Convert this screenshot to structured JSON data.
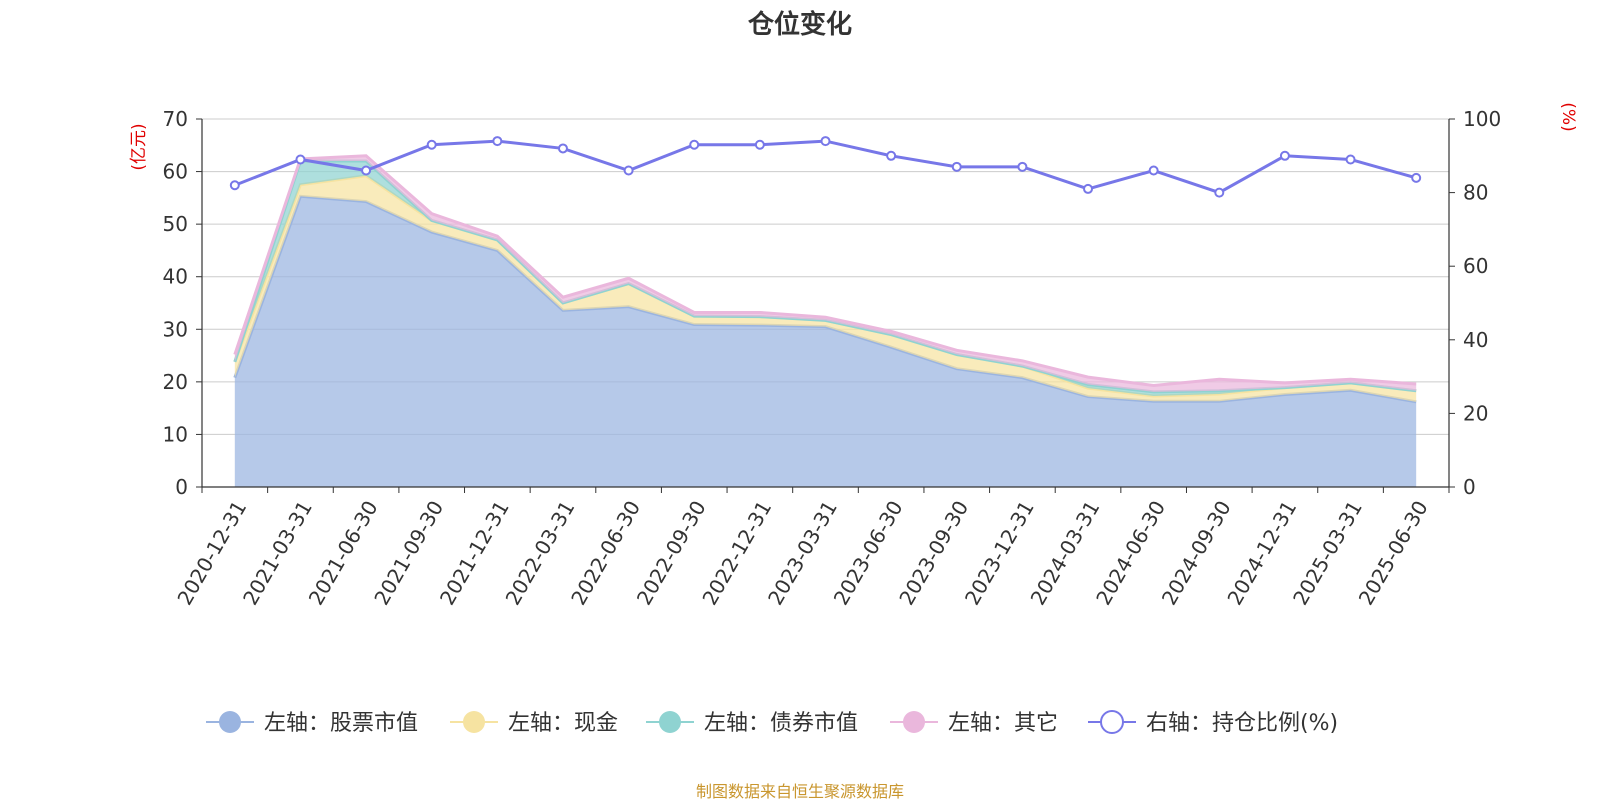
{
  "chart_data": {
    "type": "area",
    "title": "仓位变化",
    "left_axis_unit": "(亿元)",
    "right_axis_unit": "(%)",
    "categories": [
      "2020-12-31",
      "2021-03-31",
      "2021-06-30",
      "2021-09-30",
      "2021-12-31",
      "2022-03-31",
      "2022-06-30",
      "2022-09-30",
      "2022-12-31",
      "2023-03-31",
      "2023-06-30",
      "2023-09-30",
      "2023-12-31",
      "2024-03-31",
      "2024-06-30",
      "2024-09-30",
      "2024-12-31",
      "2025-03-31",
      "2025-06-30"
    ],
    "y_left": {
      "min": 0,
      "max": 70,
      "ticks": [
        "0",
        "10",
        "20",
        "30",
        "40",
        "50",
        "60",
        "70"
      ]
    },
    "y_right": {
      "min": 0,
      "max": 100,
      "ticks": [
        "0",
        "20",
        "40",
        "60",
        "80",
        "100"
      ]
    },
    "series": [
      {
        "name": "左轴：股票市值",
        "axis": "left",
        "kind": "stacked-area",
        "color": "#9ab4e0",
        "values": [
          20.8,
          55.3,
          54.3,
          48.5,
          45.0,
          33.6,
          34.3,
          30.9,
          30.8,
          30.5,
          26.6,
          22.5,
          20.8,
          17.2,
          16.3,
          16.3,
          17.6,
          18.4,
          16.2
        ]
      },
      {
        "name": "左轴：现金",
        "axis": "left",
        "kind": "stacked-area",
        "color": "#f6e3a1",
        "values": [
          3.0,
          2.2,
          4.9,
          2.2,
          2.0,
          1.4,
          4.4,
          1.6,
          1.6,
          1.2,
          2.4,
          2.7,
          2.2,
          1.6,
          1.0,
          1.4,
          1.3,
          1.4,
          2.1
        ]
      },
      {
        "name": "左轴：债券市值",
        "axis": "left",
        "kind": "stacked-area",
        "color": "#8fd3d1",
        "values": [
          0,
          4.5,
          2.8,
          0,
          0,
          0,
          0,
          0,
          0,
          0,
          0,
          0,
          0,
          0.7,
          0.8,
          0.6,
          0,
          0,
          0
        ]
      },
      {
        "name": "左轴：其它",
        "axis": "left",
        "kind": "stacked-area",
        "color": "#eab7dc",
        "values": [
          1.4,
          0.4,
          1.0,
          1.3,
          0.7,
          1.1,
          1.0,
          0.7,
          0.8,
          0.6,
          0.6,
          0.8,
          1.0,
          1.4,
          1.2,
          2.2,
          0.9,
          0.7,
          1.3
        ]
      },
      {
        "name": "右轴：持仓比例(%)",
        "axis": "right",
        "kind": "line",
        "color": "#7777e8",
        "values": [
          82,
          89,
          86,
          93,
          94,
          92,
          86,
          93,
          93,
          94,
          90,
          87,
          87,
          81,
          86,
          80,
          90,
          89,
          84
        ]
      }
    ],
    "legend": {
      "position": "bottom"
    },
    "grid": true
  },
  "source_note": "制图数据来自恒生聚源数据库"
}
